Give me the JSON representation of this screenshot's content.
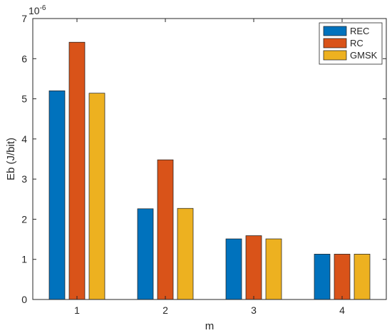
{
  "chart_data": {
    "type": "bar",
    "categories": [
      "1",
      "2",
      "3",
      "4"
    ],
    "series": [
      {
        "name": "REC",
        "color": "#0072BD",
        "values": [
          5.2,
          2.26,
          1.51,
          1.13
        ]
      },
      {
        "name": "RC",
        "color": "#D95319",
        "values": [
          6.41,
          3.48,
          1.59,
          1.13
        ]
      },
      {
        "name": "GMSK",
        "color": "#EDB120",
        "values": [
          5.14,
          2.27,
          1.51,
          1.13
        ]
      }
    ],
    "xlabel": "m",
    "ylabel": "Eb (J/bit)",
    "ylim": [
      0,
      7
    ],
    "yticks": [
      "0",
      "1",
      "2",
      "3",
      "4",
      "5",
      "6",
      "7"
    ],
    "y_exponent_base": "10",
    "y_exponent_power": "-6",
    "grid": false,
    "legend_position": "top-right"
  }
}
